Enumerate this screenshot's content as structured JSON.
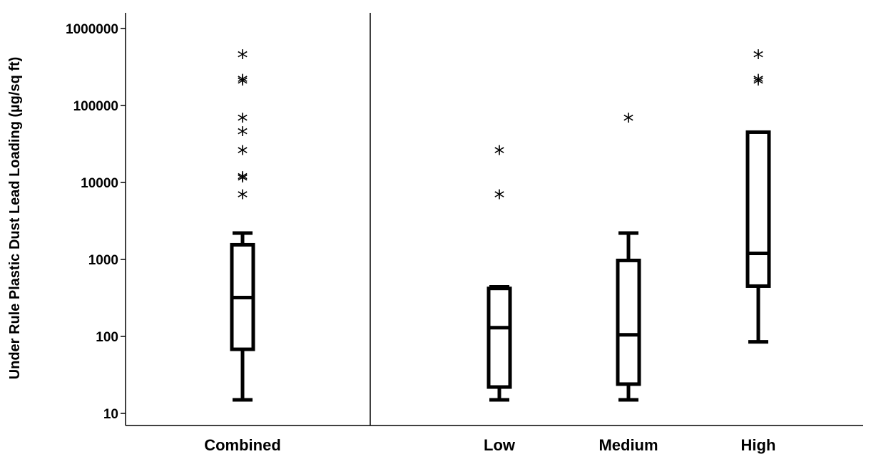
{
  "chart_data": {
    "type": "box",
    "ylabel": "Under Rule Plastic Dust Lead Loading (µg/sq ft)",
    "yscale": "log",
    "ylim": [
      10,
      1000000
    ],
    "yticks": [
      10,
      100,
      1000,
      10000,
      100000,
      1000000
    ],
    "ytick_labels": [
      "10",
      "100",
      "1000",
      "10000",
      "100000",
      "1000000"
    ],
    "outlier_marker": "*",
    "grid": false,
    "categories": [
      "Combined",
      "Low",
      "Medium",
      "High"
    ],
    "boxes": [
      {
        "category": "Combined",
        "whisker_low": 15,
        "q1": 68,
        "median": 320,
        "q3": 1550,
        "whisker_high": 2200,
        "outliers": [
          6700,
          11000,
          11500,
          25000,
          44000,
          66000,
          200000,
          210000,
          440000
        ]
      },
      {
        "category": "Low",
        "whisker_low": 15,
        "q1": 22,
        "median": 130,
        "q3": 420,
        "whisker_high": 440,
        "outliers": [
          6700,
          25000
        ]
      },
      {
        "category": "Medium",
        "whisker_low": 15,
        "q1": 24,
        "median": 105,
        "q3": 970,
        "whisker_high": 2200,
        "outliers": [
          66000
        ]
      },
      {
        "category": "High",
        "whisker_low": 85,
        "q1": 450,
        "median": 1200,
        "q3": 45000,
        "whisker_high": 45000,
        "outliers": [
          200000,
          210000,
          440000
        ]
      }
    ]
  }
}
